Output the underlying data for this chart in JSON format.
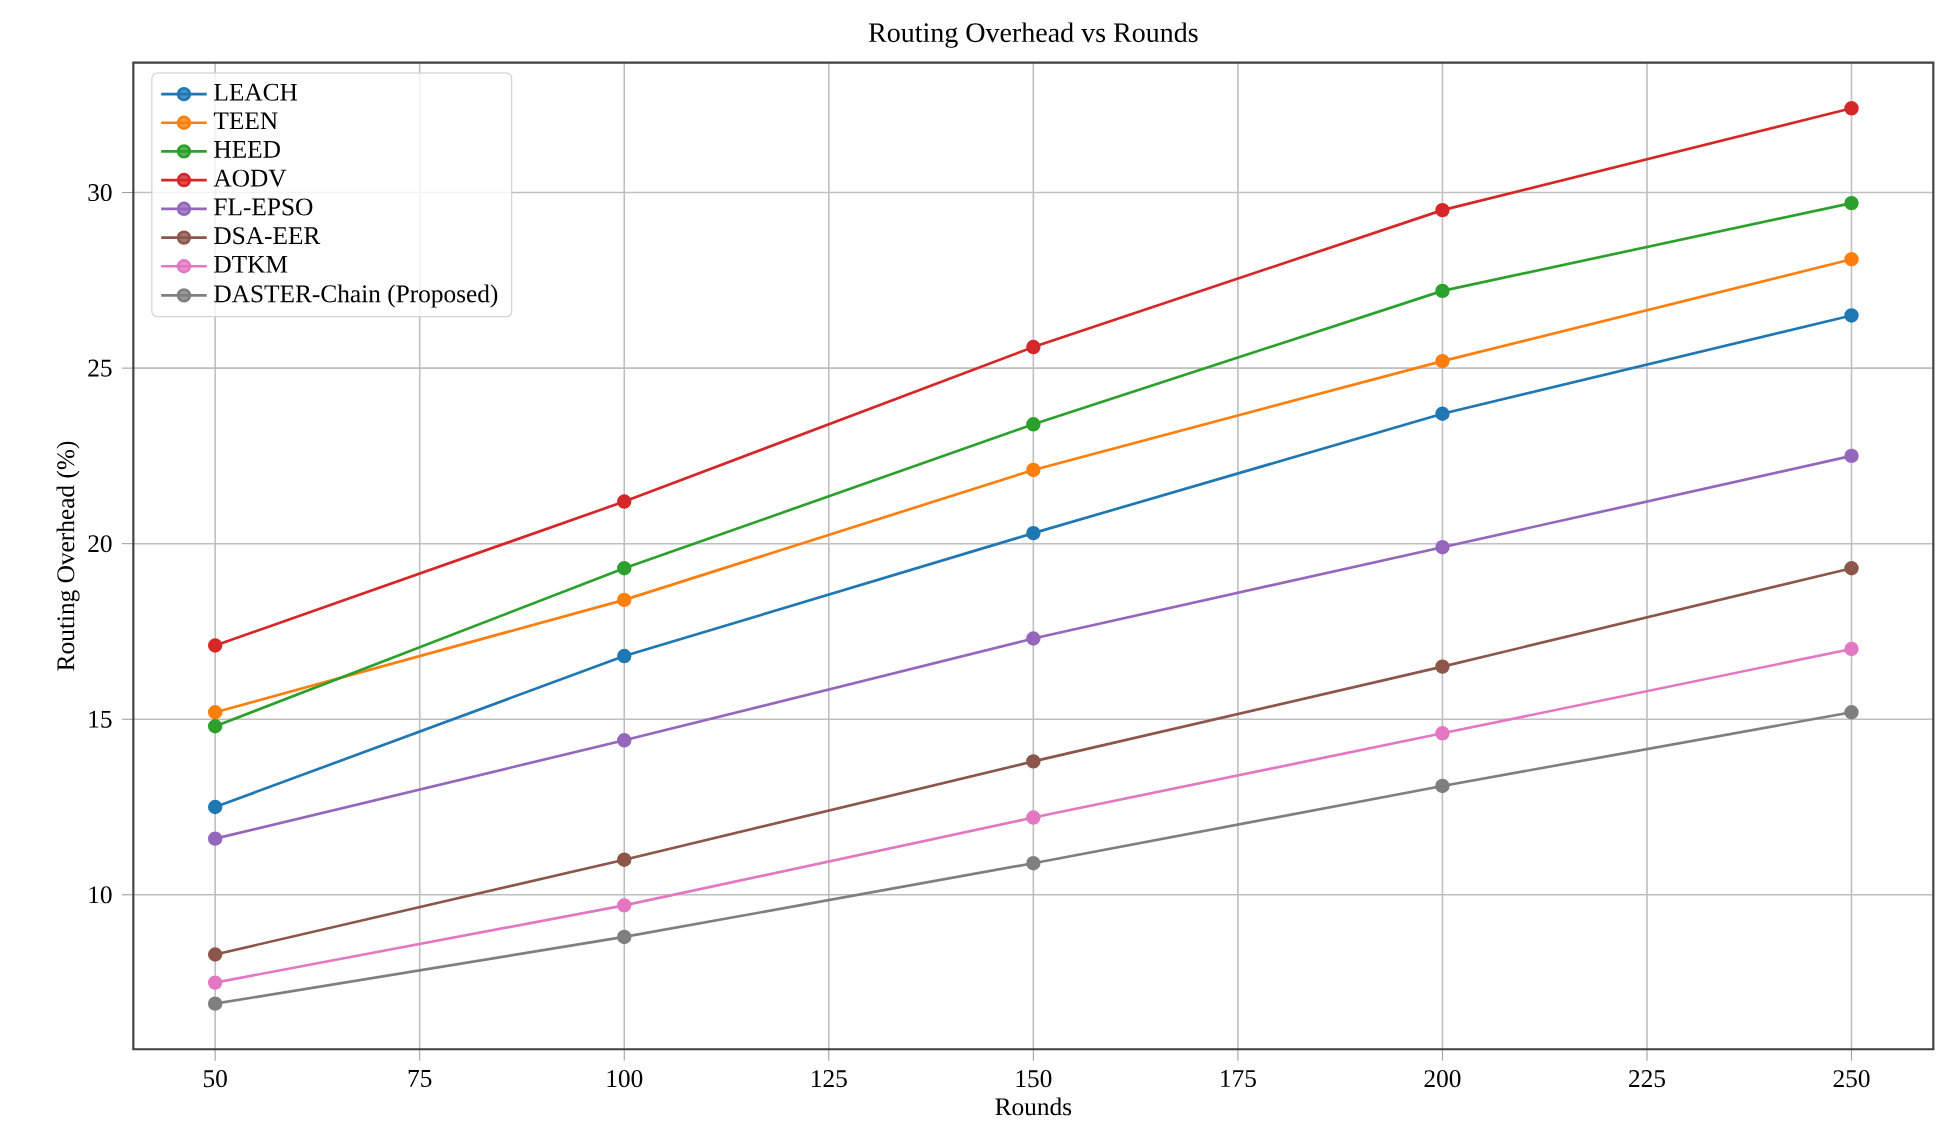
{
  "chart_data": {
    "type": "line",
    "title": "Routing Overhead vs Rounds",
    "xlabel": "Rounds",
    "ylabel": "Routing Overhead (%)",
    "x": [
      50,
      100,
      150,
      200,
      250
    ],
    "series": [
      {
        "name": "LEACH",
        "color": "#1f77b4",
        "values": [
          12.5,
          16.8,
          20.3,
          23.7,
          26.5
        ]
      },
      {
        "name": "TEEN",
        "color": "#ff7f0e",
        "values": [
          15.2,
          18.4,
          22.1,
          25.2,
          28.1
        ]
      },
      {
        "name": "HEED",
        "color": "#2ca02c",
        "values": [
          14.8,
          19.3,
          23.4,
          27.2,
          29.7
        ]
      },
      {
        "name": "AODV",
        "color": "#d62728",
        "values": [
          17.1,
          21.2,
          25.6,
          29.5,
          32.4
        ]
      },
      {
        "name": "FL-EPSO",
        "color": "#9467bd",
        "values": [
          11.6,
          14.4,
          17.3,
          19.9,
          22.5
        ]
      },
      {
        "name": "DSA-EER",
        "color": "#8c564b",
        "values": [
          8.3,
          11.0,
          13.8,
          16.5,
          19.3
        ]
      },
      {
        "name": "DTKM",
        "color": "#e377c2",
        "values": [
          7.5,
          9.7,
          12.2,
          14.6,
          17.0
        ]
      },
      {
        "name": "DASTER-Chain (Proposed)",
        "color": "#7f7f7f",
        "values": [
          6.9,
          8.8,
          10.9,
          13.1,
          15.2
        ]
      }
    ],
    "xlim": [
      40,
      260
    ],
    "ylim": [
      5.6,
      33.7
    ],
    "xticks": [
      50,
      75,
      100,
      125,
      150,
      175,
      200,
      225,
      250
    ],
    "yticks": [
      10,
      15,
      20,
      25,
      30
    ],
    "grid": true,
    "legend": "top left",
    "marker": "circle",
    "line_style": "solid"
  }
}
